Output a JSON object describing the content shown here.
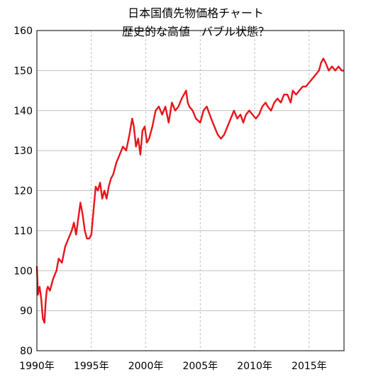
{
  "chart_data": {
    "type": "line",
    "title_line1": "日本国債先物価格チャート",
    "title_line2": "歴史的な高値　バブル状態？",
    "xlabel": "",
    "ylabel": "",
    "ylim": [
      80,
      160
    ],
    "xlim": [
      1990,
      2018.2
    ],
    "grid": true,
    "y_ticks": [
      {
        "value": 80,
        "label": "80"
      },
      {
        "value": 90,
        "label": "90"
      },
      {
        "value": 100,
        "label": "100"
      },
      {
        "value": 110,
        "label": "110"
      },
      {
        "value": 120,
        "label": "120"
      },
      {
        "value": 130,
        "label": "130"
      },
      {
        "value": 140,
        "label": "140"
      },
      {
        "value": 150,
        "label": "150"
      },
      {
        "value": 160,
        "label": "160"
      }
    ],
    "x_ticks": [
      {
        "value": 1990,
        "label": "1990年"
      },
      {
        "value": 1995,
        "label": "1995年"
      },
      {
        "value": 2000,
        "label": "2000年"
      },
      {
        "value": 2005,
        "label": "2005年"
      },
      {
        "value": 2010,
        "label": "2010年"
      },
      {
        "value": 2015,
        "label": "2015年"
      }
    ],
    "series": [
      {
        "color": "#e8141b",
        "x": [
          1990.0,
          1990.1,
          1990.25,
          1990.4,
          1990.55,
          1990.7,
          1990.8,
          1990.9,
          1991.0,
          1991.2,
          1991.5,
          1991.8,
          1992.0,
          1992.3,
          1992.6,
          1992.9,
          1993.2,
          1993.4,
          1993.6,
          1993.8,
          1994.0,
          1994.2,
          1994.4,
          1994.6,
          1994.8,
          1995.0,
          1995.2,
          1995.4,
          1995.6,
          1995.8,
          1996.0,
          1996.2,
          1996.4,
          1996.6,
          1996.8,
          1997.0,
          1997.3,
          1997.6,
          1997.9,
          1998.2,
          1998.5,
          1998.75,
          1998.9,
          1999.1,
          1999.3,
          1999.5,
          1999.7,
          1999.9,
          2000.1,
          2000.3,
          2000.6,
          2000.9,
          2001.2,
          2001.5,
          2001.8,
          2002.1,
          2002.4,
          2002.7,
          2003.0,
          2003.3,
          2003.5,
          2003.7,
          2003.85,
          2004.0,
          2004.3,
          2004.6,
          2005.0,
          2005.3,
          2005.6,
          2006.0,
          2006.3,
          2006.6,
          2006.9,
          2007.2,
          2007.5,
          2007.8,
          2008.1,
          2008.4,
          2008.7,
          2008.95,
          2009.2,
          2009.5,
          2009.8,
          2010.1,
          2010.4,
          2010.7,
          2011.0,
          2011.2,
          2011.5,
          2011.8,
          2012.1,
          2012.4,
          2012.7,
          2013.0,
          2013.3,
          2013.5,
          2013.8,
          2014.1,
          2014.4,
          2014.7,
          2015.0,
          2015.3,
          2015.6,
          2015.9,
          2016.1,
          2016.3,
          2016.5,
          2016.8,
          2017.1,
          2017.4,
          2017.7,
          2018.0,
          2018.15
        ],
        "y": [
          101,
          94,
          96,
          93,
          88,
          87,
          92,
          95,
          96,
          95,
          98,
          100,
          103,
          102,
          106,
          108,
          110,
          112,
          109,
          113,
          117,
          114,
          110,
          108,
          108,
          109,
          115,
          121,
          120,
          122,
          118,
          120,
          118,
          121,
          123,
          124,
          127,
          129,
          131,
          130,
          134,
          138,
          136,
          131,
          133,
          129,
          135,
          136,
          132,
          133,
          136,
          140,
          141,
          139,
          141,
          137,
          142,
          140,
          141,
          143,
          144,
          145,
          142,
          141,
          140,
          138,
          137,
          140,
          141,
          138,
          136,
          134,
          133,
          134,
          136,
          138,
          140,
          138,
          139,
          137,
          139,
          140,
          139,
          138,
          139,
          141,
          142,
          141,
          140,
          142,
          143,
          142,
          144,
          144,
          142,
          145,
          144,
          145,
          146,
          146,
          147,
          148,
          149,
          150,
          152,
          153,
          152,
          150,
          151,
          150,
          151,
          150,
          150
        ]
      }
    ]
  }
}
